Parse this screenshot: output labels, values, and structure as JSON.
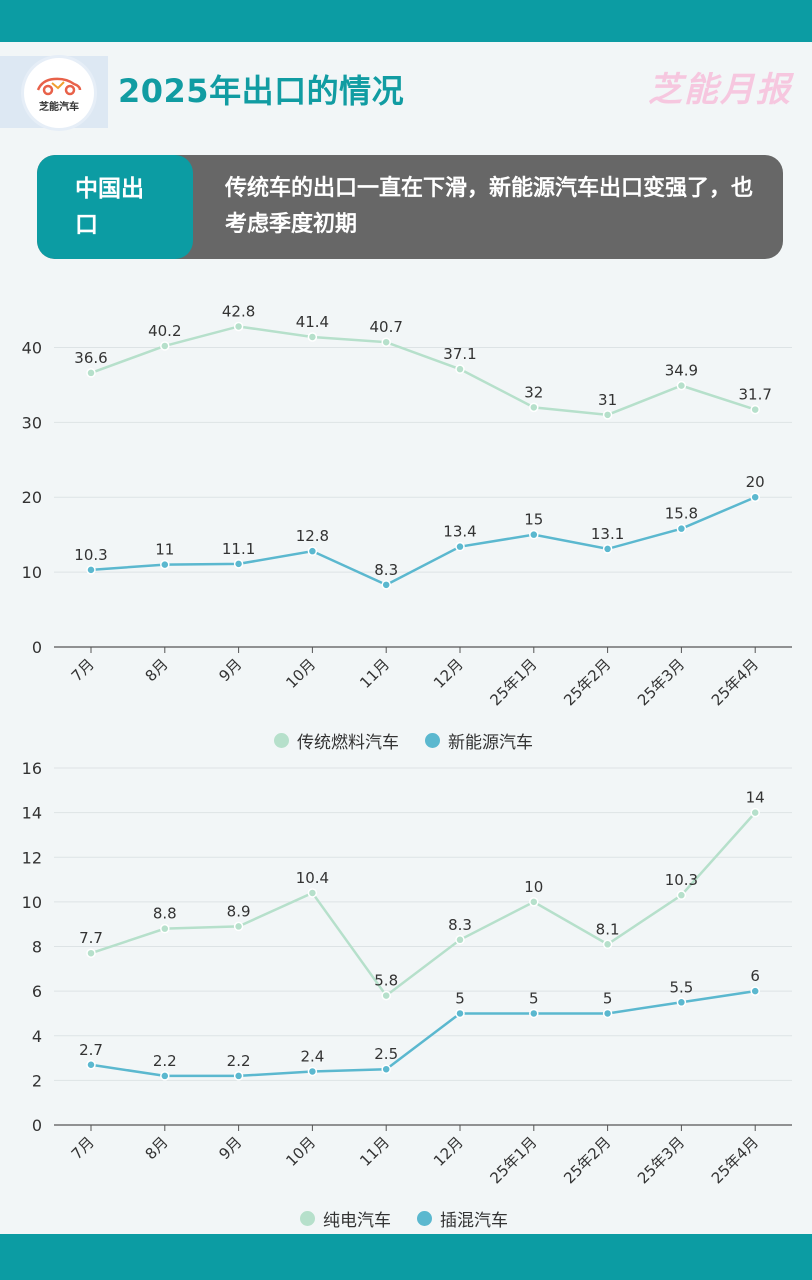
{
  "header": {
    "logo_text": "芝能汽车",
    "title": "2025年出口的情况",
    "brand": "芝能月报"
  },
  "banner": {
    "tag": "中国出口",
    "text": "传统车的出口一直在下滑，新能源汽车出口变强了，也考虑季度初期"
  },
  "colors": {
    "teal": "#0c9ca3",
    "series_light": "#b6e0cb",
    "series_dark": "#5bb8cf",
    "banner_gray": "#676767"
  },
  "chart_data": [
    {
      "type": "line",
      "categories": [
        "7月",
        "8月",
        "9月",
        "10月",
        "11月",
        "12月",
        "25年1月",
        "25年2月",
        "25年3月",
        "25年4月"
      ],
      "series": [
        {
          "name": "传统燃料汽车",
          "color": "#b6e0cb",
          "values": [
            36.6,
            40.2,
            42.8,
            41.4,
            40.7,
            37.1,
            32,
            31,
            34.9,
            31.7
          ]
        },
        {
          "name": "新能源汽车",
          "color": "#5bb8cf",
          "values": [
            10.3,
            11,
            11.1,
            12.8,
            8.3,
            13.4,
            15,
            13.1,
            15.8,
            20
          ]
        }
      ],
      "yticks": [
        0,
        10,
        20,
        30,
        40
      ],
      "ylim": [
        0,
        45
      ],
      "grid": true,
      "legend": "bottom-center"
    },
    {
      "type": "line",
      "categories": [
        "7月",
        "8月",
        "9月",
        "10月",
        "11月",
        "12月",
        "25年1月",
        "25年2月",
        "25年3月",
        "25年4月"
      ],
      "series": [
        {
          "name": "纯电汽车",
          "color": "#b6e0cb",
          "values": [
            7.7,
            8.8,
            8.9,
            10.4,
            5.8,
            8.3,
            10,
            8.1,
            10.3,
            14
          ]
        },
        {
          "name": "插混汽车",
          "color": "#5bb8cf",
          "values": [
            2.7,
            2.2,
            2.2,
            2.4,
            2.5,
            5,
            5,
            5,
            5.5,
            6
          ]
        }
      ],
      "yticks": [
        0,
        2,
        4,
        6,
        8,
        10,
        12,
        14,
        16
      ],
      "ylim": [
        0,
        16
      ],
      "grid": true,
      "legend": "bottom-center"
    }
  ]
}
